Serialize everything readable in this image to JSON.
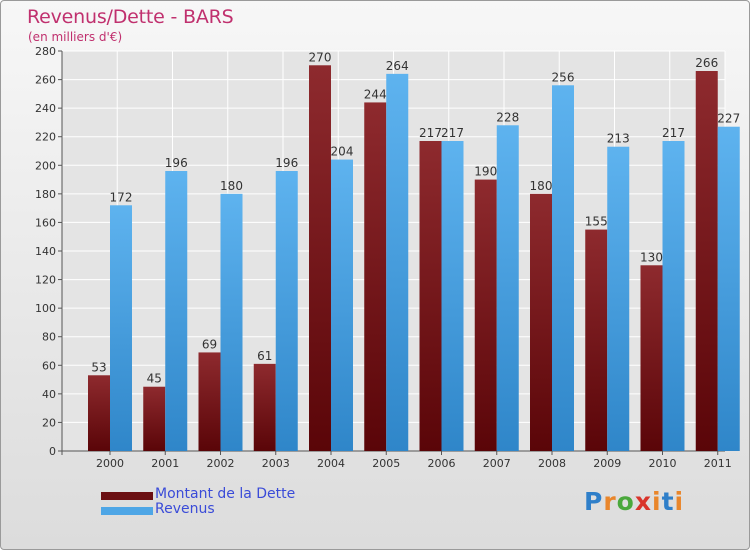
{
  "title": "Revenus/Dette - BARS",
  "subtitle": "(en milliers d'€)",
  "chart_data": {
    "type": "bar",
    "title": "Revenus/Dette - BARS",
    "subtitle": "(en milliers d'€)",
    "categories": [
      "2000",
      "2001",
      "2002",
      "2003",
      "2004",
      "2005",
      "2006",
      "2007",
      "2008",
      "2009",
      "2010",
      "2011"
    ],
    "series": [
      {
        "name": "Montant de la Dette",
        "color": "#7a1a1e",
        "values": [
          53,
          45,
          69,
          61,
          270,
          244,
          217,
          190,
          180,
          155,
          130,
          266
        ]
      },
      {
        "name": "Revenus",
        "color": "#4ea6e6",
        "values": [
          172,
          196,
          180,
          196,
          204,
          264,
          217,
          228,
          256,
          213,
          217,
          227
        ]
      }
    ],
    "ylim": [
      0,
      280
    ],
    "yticks": [
      0,
      20,
      40,
      60,
      80,
      100,
      120,
      140,
      160,
      180,
      200,
      220,
      240,
      260,
      280
    ],
    "grid": true,
    "legend_position": "bottom-left"
  },
  "legend": [
    {
      "label": "Montant de la Dette",
      "color": "#6b0f12"
    },
    {
      "label": "Revenus",
      "color": "#4ea6e6"
    }
  ],
  "logo": {
    "letters": [
      "P",
      "r",
      "o",
      "x",
      "i",
      "t",
      "i"
    ],
    "colors": [
      "#2f7fc9",
      "#e9862b",
      "#4aa83c",
      "#d9342b",
      "#e9862b",
      "#2f7fc9",
      "#e9862b"
    ]
  }
}
